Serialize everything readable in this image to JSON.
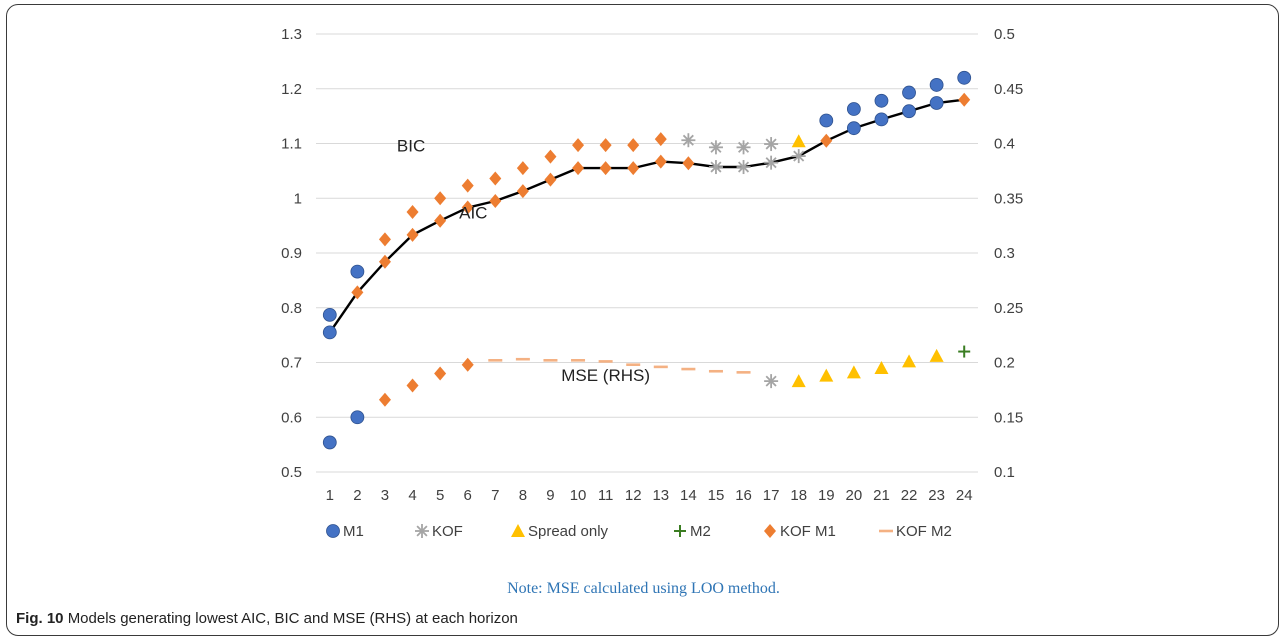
{
  "figure": {
    "note": "Note: MSE calculated using LOO method.",
    "caption_label": "Fig. 10",
    "caption_text": "Models generating lowest AIC, BIC and MSE (RHS) at each horizon"
  },
  "chart_data": {
    "type": "scatter",
    "x": [
      1,
      2,
      3,
      4,
      5,
      6,
      7,
      8,
      9,
      10,
      11,
      12,
      13,
      14,
      15,
      16,
      17,
      18,
      19,
      20,
      21,
      22,
      23,
      24
    ],
    "x_ticks": [
      "1",
      "2",
      "3",
      "4",
      "5",
      "6",
      "7",
      "8",
      "9",
      "10",
      "11",
      "12",
      "13",
      "14",
      "15",
      "16",
      "17",
      "18",
      "19",
      "20",
      "21",
      "22",
      "23",
      "24"
    ],
    "left_axis": {
      "ylim": [
        0.5,
        1.3
      ],
      "ticks": [
        "0.5",
        "0.6",
        "0.7",
        "0.8",
        "0.9",
        "1",
        "1.1",
        "1.2",
        "1.3"
      ]
    },
    "right_axis": {
      "ylim": [
        0.1,
        0.5
      ],
      "ticks": [
        "0.1",
        "0.15",
        "0.2",
        "0.25",
        "0.3",
        "0.35",
        "0.4",
        "0.45",
        "0.5"
      ]
    },
    "gridlines": "horizontal",
    "legend_position": "bottom",
    "annotations": {
      "bic": "BIC",
      "aic": "AIC",
      "mse": "MSE (RHS)"
    },
    "series_colors": {
      "M1": "#4472c4",
      "KOF": "#a5a5a5",
      "Spread only": "#ffc000",
      "M2": "#3a7d22",
      "KOF M1": "#ed7d31",
      "KOF M2": "#f4b183"
    },
    "legend": [
      {
        "name": "M1",
        "marker": "circle"
      },
      {
        "name": "KOF",
        "marker": "asterisk"
      },
      {
        "name": "Spread only",
        "marker": "triangle"
      },
      {
        "name": "M2",
        "marker": "plus"
      },
      {
        "name": "KOF M1",
        "marker": "diamond"
      },
      {
        "name": "KOF M2",
        "marker": "dash"
      }
    ],
    "bic": [
      {
        "x": 1,
        "y": 0.787,
        "s": "M1"
      },
      {
        "x": 2,
        "y": 0.866,
        "s": "M1"
      },
      {
        "x": 3,
        "y": 0.925,
        "s": "KOF M1"
      },
      {
        "x": 4,
        "y": 0.975,
        "s": "KOF M1"
      },
      {
        "x": 5,
        "y": 1.0,
        "s": "KOF M1"
      },
      {
        "x": 6,
        "y": 1.023,
        "s": "KOF M1"
      },
      {
        "x": 7,
        "y": 1.036,
        "s": "KOF M1"
      },
      {
        "x": 8,
        "y": 1.055,
        "s": "KOF M1"
      },
      {
        "x": 9,
        "y": 1.076,
        "s": "KOF M1"
      },
      {
        "x": 10,
        "y": 1.097,
        "s": "KOF M1"
      },
      {
        "x": 11,
        "y": 1.097,
        "s": "KOF M1"
      },
      {
        "x": 12,
        "y": 1.097,
        "s": "KOF M1"
      },
      {
        "x": 13,
        "y": 1.108,
        "s": "KOF M1"
      },
      {
        "x": 14,
        "y": 1.106,
        "s": "KOF"
      },
      {
        "x": 15,
        "y": 1.093,
        "s": "KOF"
      },
      {
        "x": 16,
        "y": 1.093,
        "s": "KOF"
      },
      {
        "x": 17,
        "y": 1.099,
        "s": "KOF"
      },
      {
        "x": 18,
        "y": 1.104,
        "s": "Spread only"
      },
      {
        "x": 19,
        "y": 1.142,
        "s": "M1"
      },
      {
        "x": 20,
        "y": 1.163,
        "s": "M1"
      },
      {
        "x": 21,
        "y": 1.178,
        "s": "M1"
      },
      {
        "x": 22,
        "y": 1.193,
        "s": "M1"
      },
      {
        "x": 23,
        "y": 1.207,
        "s": "M1"
      },
      {
        "x": 24,
        "y": 1.22,
        "s": "M1"
      }
    ],
    "aic": [
      {
        "x": 1,
        "y": 0.755,
        "s": "M1"
      },
      {
        "x": 2,
        "y": 0.828,
        "s": "KOF M1"
      },
      {
        "x": 3,
        "y": 0.884,
        "s": "KOF M1"
      },
      {
        "x": 4,
        "y": 0.933,
        "s": "KOF M1"
      },
      {
        "x": 5,
        "y": 0.959,
        "s": "KOF M1"
      },
      {
        "x": 6,
        "y": 0.983,
        "s": "KOF M1"
      },
      {
        "x": 7,
        "y": 0.995,
        "s": "KOF M1"
      },
      {
        "x": 8,
        "y": 1.013,
        "s": "KOF M1"
      },
      {
        "x": 9,
        "y": 1.034,
        "s": "KOF M1"
      },
      {
        "x": 10,
        "y": 1.055,
        "s": "KOF M1"
      },
      {
        "x": 11,
        "y": 1.055,
        "s": "KOF M1"
      },
      {
        "x": 12,
        "y": 1.055,
        "s": "KOF M1"
      },
      {
        "x": 13,
        "y": 1.067,
        "s": "KOF M1"
      },
      {
        "x": 14,
        "y": 1.064,
        "s": "KOF M1"
      },
      {
        "x": 15,
        "y": 1.057,
        "s": "KOF"
      },
      {
        "x": 16,
        "y": 1.057,
        "s": "KOF"
      },
      {
        "x": 17,
        "y": 1.065,
        "s": "KOF"
      },
      {
        "x": 18,
        "y": 1.077,
        "s": "KOF"
      },
      {
        "x": 19,
        "y": 1.105,
        "s": "KOF M1"
      },
      {
        "x": 20,
        "y": 1.128,
        "s": "M1"
      },
      {
        "x": 21,
        "y": 1.144,
        "s": "M1"
      },
      {
        "x": 22,
        "y": 1.159,
        "s": "M1"
      },
      {
        "x": 23,
        "y": 1.174,
        "s": "M1"
      },
      {
        "x": 24,
        "y": 1.18,
        "s": "KOF M1"
      }
    ],
    "mse": [
      {
        "x": 1,
        "y": 0.127,
        "s": "M1"
      },
      {
        "x": 2,
        "y": 0.15,
        "s": "M1"
      },
      {
        "x": 3,
        "y": 0.166,
        "s": "KOF M1"
      },
      {
        "x": 4,
        "y": 0.179,
        "s": "KOF M1"
      },
      {
        "x": 5,
        "y": 0.19,
        "s": "KOF M1"
      },
      {
        "x": 6,
        "y": 0.198,
        "s": "KOF M1"
      },
      {
        "x": 7,
        "y": 0.202,
        "s": "KOF M2"
      },
      {
        "x": 8,
        "y": 0.203,
        "s": "KOF M2"
      },
      {
        "x": 9,
        "y": 0.202,
        "s": "KOF M2"
      },
      {
        "x": 10,
        "y": 0.202,
        "s": "KOF M2"
      },
      {
        "x": 11,
        "y": 0.201,
        "s": "KOF M2"
      },
      {
        "x": 12,
        "y": 0.198,
        "s": "KOF M2"
      },
      {
        "x": 13,
        "y": 0.196,
        "s": "KOF M2"
      },
      {
        "x": 14,
        "y": 0.194,
        "s": "KOF M2"
      },
      {
        "x": 15,
        "y": 0.192,
        "s": "KOF M2"
      },
      {
        "x": 16,
        "y": 0.191,
        "s": "KOF M2"
      },
      {
        "x": 17,
        "y": 0.183,
        "s": "KOF"
      },
      {
        "x": 18,
        "y": 0.183,
        "s": "Spread only"
      },
      {
        "x": 19,
        "y": 0.188,
        "s": "Spread only"
      },
      {
        "x": 20,
        "y": 0.191,
        "s": "Spread only"
      },
      {
        "x": 21,
        "y": 0.195,
        "s": "Spread only"
      },
      {
        "x": 22,
        "y": 0.201,
        "s": "Spread only"
      },
      {
        "x": 23,
        "y": 0.206,
        "s": "Spread only"
      },
      {
        "x": 24,
        "y": 0.21,
        "s": "M2"
      }
    ]
  }
}
